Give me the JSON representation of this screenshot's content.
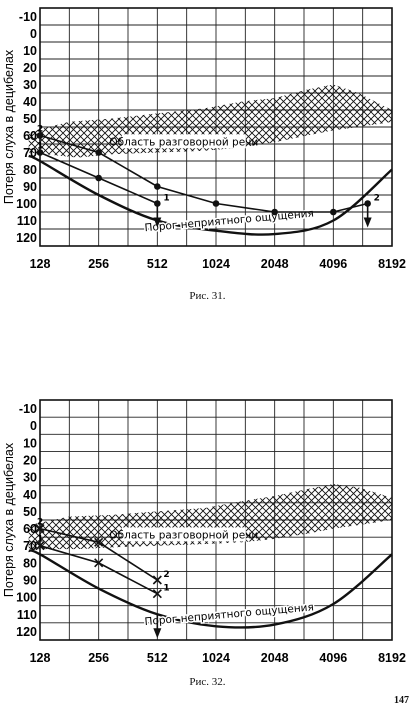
{
  "page_number": "147",
  "figures": [
    {
      "caption": "Рис. 31."
    },
    {
      "caption": "Рис. 32."
    }
  ],
  "chart_data": [
    {
      "type": "line",
      "ylabel": "Потеря слуха в децибелах",
      "xscale": "log2",
      "x_ticks": [
        "128",
        "256",
        "512",
        "1024",
        "2048",
        "4096",
        "8192"
      ],
      "x_values": [
        128,
        256,
        512,
        1024,
        2048,
        4096,
        8192
      ],
      "y_ticks": [
        "-10",
        "0",
        "10",
        "20",
        "30",
        "40",
        "50",
        "60",
        "70",
        "80",
        "90",
        "100",
        "110",
        "120"
      ],
      "ylim": [
        -10,
        120
      ],
      "y_inverted": true,
      "grid": true,
      "speech_area": {
        "label": "Область разговорной речи",
        "upper": [
          [
            112,
            58
          ],
          [
            180,
            52
          ],
          [
            300,
            50
          ],
          [
            512,
            47
          ],
          [
            900,
            44
          ],
          [
            1400,
            40
          ],
          [
            2048,
            38
          ],
          [
            3000,
            33
          ],
          [
            4096,
            30
          ],
          [
            5500,
            35
          ],
          [
            8192,
            45
          ]
        ],
        "lower": [
          [
            112,
            70
          ],
          [
            200,
            73
          ],
          [
            300,
            71
          ],
          [
            512,
            70
          ],
          [
            900,
            69
          ],
          [
            1400,
            67
          ],
          [
            2048,
            64
          ],
          [
            3000,
            60
          ],
          [
            4096,
            57
          ],
          [
            5500,
            55
          ],
          [
            8192,
            52
          ]
        ]
      },
      "series": [
        {
          "name": "1",
          "x": [
            128,
            256,
            512
          ],
          "y": [
            70,
            85,
            100
          ],
          "marker": "dot",
          "point_label": "1"
        },
        {
          "name": "2",
          "x": [
            128,
            256,
            512,
            1024,
            2048,
            4096,
            6144
          ],
          "y": [
            60,
            70,
            90,
            100,
            105,
            105,
            100
          ],
          "marker": "dot",
          "point_label": "2"
        }
      ],
      "arrows": [
        [
          512,
          100
        ],
        [
          6144,
          100
        ]
      ],
      "threshold": {
        "label": "Порог неприятного ощущения",
        "x": [
          112,
          128,
          256,
          512,
          1024,
          2048,
          4096,
          8192
        ],
        "y": [
          72,
          75,
          95,
          110,
          116,
          118,
          110,
          80
        ]
      }
    },
    {
      "type": "line",
      "ylabel": "Потеря слуха в децибелах",
      "xscale": "log2",
      "x_ticks": [
        "128",
        "256",
        "512",
        "1024",
        "2048",
        "4096",
        "8192"
      ],
      "x_values": [
        128,
        256,
        512,
        1024,
        2048,
        4096,
        8192
      ],
      "y_ticks": [
        "-10",
        "0",
        "10",
        "20",
        "30",
        "40",
        "50",
        "60",
        "70",
        "80",
        "90",
        "100",
        "110",
        "120"
      ],
      "ylim": [
        -10,
        120
      ],
      "y_inverted": true,
      "grid": true,
      "speech_area": {
        "label": "Область разговорной речи",
        "upper": [
          [
            112,
            58
          ],
          [
            180,
            53
          ],
          [
            300,
            52
          ],
          [
            512,
            50
          ],
          [
            900,
            48
          ],
          [
            1400,
            44
          ],
          [
            2048,
            41
          ],
          [
            3000,
            37
          ],
          [
            4096,
            34
          ],
          [
            5500,
            36
          ],
          [
            8192,
            42
          ]
        ],
        "lower": [
          [
            112,
            72
          ],
          [
            200,
            72
          ],
          [
            300,
            71
          ],
          [
            512,
            70
          ],
          [
            900,
            69
          ],
          [
            1400,
            68
          ],
          [
            2048,
            66
          ],
          [
            3000,
            63
          ],
          [
            4096,
            60
          ],
          [
            5500,
            58
          ],
          [
            8192,
            55
          ]
        ]
      },
      "series": [
        {
          "name": "1",
          "x": [
            128,
            256,
            512
          ],
          "y": [
            70,
            80,
            98
          ],
          "marker": "cross",
          "point_label": "1"
        },
        {
          "name": "2",
          "x": [
            128,
            256,
            512
          ],
          "y": [
            60,
            68,
            90
          ],
          "marker": "cross",
          "point_label": "2"
        }
      ],
      "arrows": [
        [
          512,
          110
        ]
      ],
      "threshold": {
        "label": "Порог неприятного ощущения",
        "x": [
          112,
          128,
          256,
          512,
          1024,
          2048,
          4096,
          8192
        ],
        "y": [
          73,
          75,
          95,
          110,
          117,
          116,
          104,
          75
        ]
      }
    }
  ]
}
